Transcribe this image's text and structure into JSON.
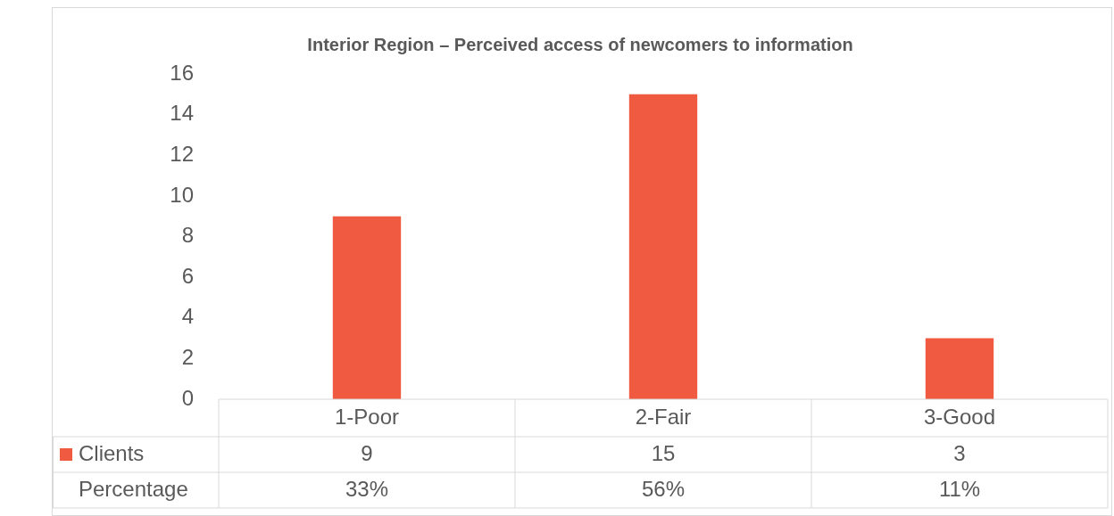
{
  "chart_data": {
    "type": "bar",
    "title": "Interior Region – Perceived access of newcomers to information",
    "categories": [
      "1-Poor",
      "2-Fair",
      "3-Good"
    ],
    "series": [
      {
        "name": "Clients",
        "color": "#f05a40",
        "values": [
          9,
          15,
          3
        ]
      }
    ],
    "ylim": [
      0,
      16
    ],
    "yticks": [
      0,
      2,
      4,
      6,
      8,
      10,
      12,
      14,
      16
    ],
    "grid": false,
    "legend": "bottom left",
    "data_labels": true,
    "annotations": [
      "Percentage",
      "33%",
      "56%",
      "11%"
    ]
  }
}
